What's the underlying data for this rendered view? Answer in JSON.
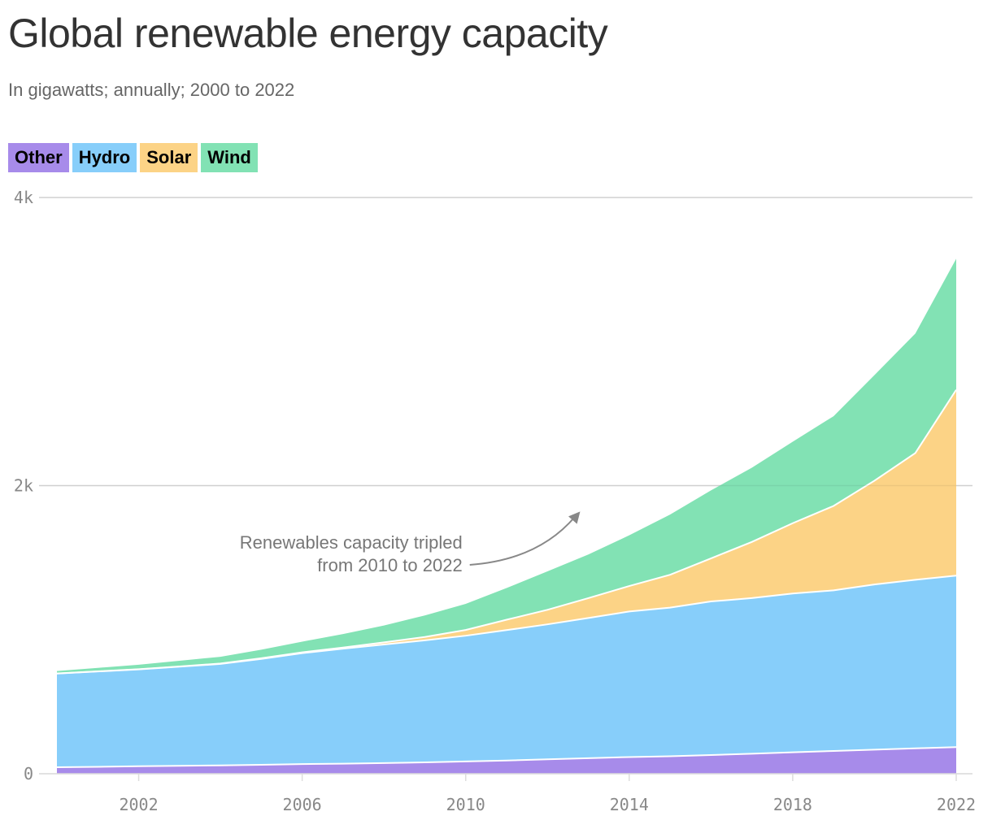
{
  "title": "Global renewable energy capacity",
  "subtitle": "In gigawatts; annually; 2000 to 2022",
  "colors": {
    "other": "#A78BEA",
    "hydro": "#87CEFA",
    "solar": "#FCD386",
    "wind": "#82E2B4",
    "grid": "#DDDDDD",
    "axis_text": "#888888",
    "annotation": "#777777"
  },
  "chart_data": {
    "type": "area",
    "stacked": true,
    "x": [
      2000,
      2001,
      2002,
      2003,
      2004,
      2005,
      2006,
      2007,
      2008,
      2009,
      2010,
      2011,
      2012,
      2013,
      2014,
      2015,
      2016,
      2017,
      2018,
      2019,
      2020,
      2021,
      2022
    ],
    "series": [
      {
        "name": "Other",
        "color": "#A78BEA",
        "values": [
          45,
          48,
          52,
          55,
          58,
          62,
          67,
          70,
          74,
          79,
          85,
          92,
          100,
          108,
          116,
          121,
          130,
          139,
          149,
          158,
          167,
          176,
          185
        ]
      },
      {
        "name": "Hydro",
        "color": "#87CEFA",
        "values": [
          650,
          662,
          672,
          688,
          704,
          735,
          770,
          798,
          823,
          847,
          873,
          905,
          937,
          973,
          1010,
          1032,
          1066,
          1080,
          1102,
          1115,
          1147,
          1170,
          1190
        ]
      },
      {
        "name": "Solar",
        "color": "#FCD386",
        "values": [
          1,
          1,
          2,
          2,
          3,
          5,
          6,
          8,
          15,
          23,
          40,
          72,
          101,
          138,
          177,
          228,
          299,
          390,
          488,
          586,
          720,
          880,
          1290
        ]
      },
      {
        "name": "Wind",
        "color": "#82E2B4",
        "values": [
          17,
          24,
          31,
          39,
          47,
          59,
          74,
          94,
          117,
          150,
          181,
          220,
          267,
          303,
          352,
          418,
          472,
          515,
          566,
          623,
          733,
          830,
          910
        ]
      }
    ],
    "xticks": [
      "2002",
      "2006",
      "2010",
      "2014",
      "2018",
      "2022"
    ],
    "yticks": [
      "0",
      "2k",
      "4k"
    ],
    "xlim": [
      2000,
      2022
    ],
    "ylim": [
      0,
      4000
    ],
    "legend_position": "top-left",
    "annotation": {
      "lines": [
        "Renewables capacity tripled",
        "from 2010 to 2022"
      ],
      "arrow_from": {
        "x": 2010,
        "y": 1450
      },
      "arrow_to": {
        "x": 2012.8,
        "y": 1820
      }
    },
    "grid": true,
    "xlabel": "",
    "ylabel": ""
  }
}
